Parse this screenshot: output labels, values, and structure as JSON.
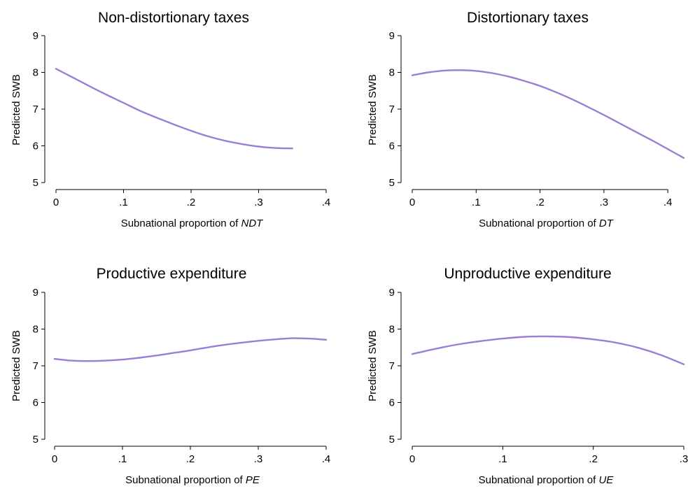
{
  "chart_data": [
    {
      "type": "line",
      "title": "Non-distortionary taxes",
      "ylabel": "Predicted SWB",
      "xlabel_prefix": "Subnational proportion of ",
      "xlabel_var": "NDT",
      "xlim": [
        0,
        0.4
      ],
      "ylim": [
        5,
        9
      ],
      "xticks": [
        0,
        0.1,
        0.2,
        0.3,
        0.4
      ],
      "xtick_labels": [
        "0",
        ".1",
        ".2",
        ".3",
        ".4"
      ],
      "yticks": [
        5,
        6,
        7,
        8,
        9
      ],
      "ytick_labels": [
        "5",
        "6",
        "7",
        "8",
        "9"
      ],
      "grid": false,
      "line_color": "#9b7fd4",
      "series": [
        {
          "x": [
            0,
            0.025,
            0.05,
            0.075,
            0.1,
            0.125,
            0.15,
            0.175,
            0.2,
            0.225,
            0.25,
            0.275,
            0.3,
            0.325,
            0.35
          ],
          "y": [
            8.1,
            7.86,
            7.62,
            7.39,
            7.17,
            6.95,
            6.76,
            6.58,
            6.41,
            6.26,
            6.14,
            6.05,
            5.98,
            5.94,
            5.93
          ]
        }
      ]
    },
    {
      "type": "line",
      "title": "Distortionary taxes",
      "ylabel": "Predicted SWB",
      "xlabel_prefix": "Subnational proportion of ",
      "xlabel_var": "DT",
      "xlim": [
        0,
        0.425
      ],
      "ylim": [
        5,
        9
      ],
      "xticks": [
        0,
        0.1,
        0.2,
        0.3,
        0.4
      ],
      "xtick_labels": [
        "0",
        ".1",
        ".2",
        ".3",
        ".4"
      ],
      "yticks": [
        5,
        6,
        7,
        8,
        9
      ],
      "ytick_labels": [
        "5",
        "6",
        "7",
        "8",
        "9"
      ],
      "grid": false,
      "line_color": "#9b7fd4",
      "series": [
        {
          "x": [
            0,
            0.025,
            0.05,
            0.075,
            0.1,
            0.125,
            0.15,
            0.175,
            0.2,
            0.225,
            0.25,
            0.275,
            0.3,
            0.325,
            0.35,
            0.375,
            0.4,
            0.425
          ],
          "y": [
            7.92,
            8.0,
            8.05,
            8.06,
            8.04,
            7.98,
            7.89,
            7.77,
            7.63,
            7.46,
            7.27,
            7.06,
            6.84,
            6.61,
            6.38,
            6.15,
            5.91,
            5.67
          ]
        }
      ]
    },
    {
      "type": "line",
      "title": "Productive expenditure",
      "ylabel": "Predicted SWB",
      "xlabel_prefix": "Subnational proportion of ",
      "xlabel_var": "PE",
      "xlim": [
        0,
        0.4
      ],
      "ylim": [
        5,
        9
      ],
      "xticks": [
        0,
        0.1,
        0.2,
        0.3,
        0.4
      ],
      "xtick_labels": [
        "0",
        ".1",
        ".2",
        ".3",
        ".4"
      ],
      "yticks": [
        5,
        6,
        7,
        8,
        9
      ],
      "ytick_labels": [
        "5",
        "6",
        "7",
        "8",
        "9"
      ],
      "grid": false,
      "line_color": "#9b7fd4",
      "series": [
        {
          "x": [
            0,
            0.025,
            0.05,
            0.075,
            0.1,
            0.125,
            0.15,
            0.175,
            0.2,
            0.225,
            0.25,
            0.275,
            0.3,
            0.325,
            0.35,
            0.375,
            0.4
          ],
          "y": [
            7.19,
            7.14,
            7.13,
            7.14,
            7.17,
            7.22,
            7.28,
            7.35,
            7.42,
            7.5,
            7.57,
            7.63,
            7.68,
            7.72,
            7.75,
            7.74,
            7.71
          ]
        }
      ]
    },
    {
      "type": "line",
      "title": "Unproductive expenditure",
      "ylabel": "Predicted SWB",
      "xlabel_prefix": "Subnational proportion of ",
      "xlabel_var": "UE",
      "xlim": [
        0,
        0.3
      ],
      "ylim": [
        5,
        9
      ],
      "xticks": [
        0,
        0.1,
        0.2,
        0.3
      ],
      "xtick_labels": [
        "0",
        ".1",
        ".2",
        ".3"
      ],
      "yticks": [
        5,
        6,
        7,
        8,
        9
      ],
      "ytick_labels": [
        "5",
        "6",
        "7",
        "8",
        "9"
      ],
      "grid": false,
      "line_color": "#9b7fd4",
      "series": [
        {
          "x": [
            0,
            0.025,
            0.05,
            0.075,
            0.1,
            0.125,
            0.15,
            0.175,
            0.2,
            0.225,
            0.25,
            0.275,
            0.3
          ],
          "y": [
            7.32,
            7.46,
            7.58,
            7.67,
            7.74,
            7.79,
            7.8,
            7.78,
            7.72,
            7.63,
            7.49,
            7.29,
            7.04
          ]
        }
      ]
    }
  ]
}
